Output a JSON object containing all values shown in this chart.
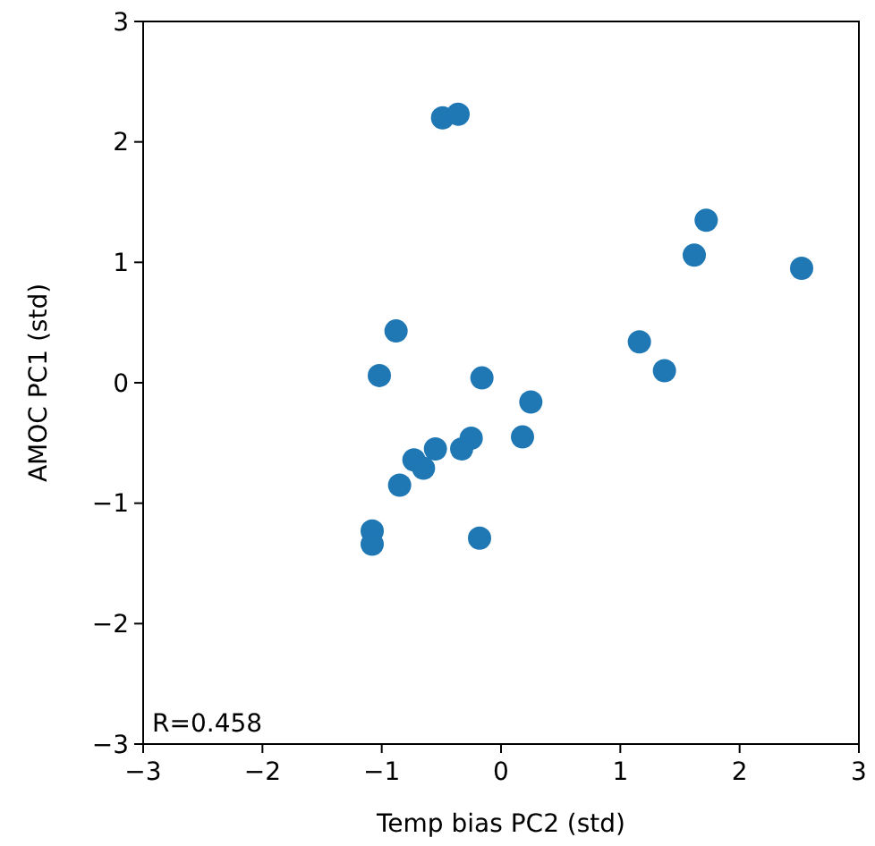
{
  "chart_data": {
    "type": "scatter",
    "xlabel": "Temp bias PC2 (std)",
    "ylabel": "AMOC PC1 (std)",
    "xlim": [
      -3,
      3
    ],
    "ylim": [
      -3,
      3
    ],
    "xticks": [
      {
        "value": -3,
        "label": "−3"
      },
      {
        "value": -2,
        "label": "−2"
      },
      {
        "value": -1,
        "label": "−1"
      },
      0,
      1,
      2,
      3
    ],
    "yticks": [
      {
        "value": -3,
        "label": "−3"
      },
      {
        "value": -2,
        "label": "−2"
      },
      {
        "value": -1,
        "label": "−1"
      },
      0,
      1,
      2,
      3
    ],
    "marker": "circle",
    "grid": false,
    "annotations": [
      "R=0.458"
    ],
    "series": [
      {
        "color": "#1f77b4",
        "x": [
          -0.49,
          -0.36,
          1.72,
          1.62,
          2.52,
          1.16,
          1.37,
          -0.88,
          -1.02,
          -0.16,
          0.25,
          0.18,
          -0.25,
          -0.33,
          -0.55,
          -0.73,
          -0.65,
          -0.85,
          -1.08,
          -1.08,
          -0.18
        ],
        "values": [
          2.2,
          2.23,
          1.35,
          1.06,
          0.95,
          0.34,
          0.1,
          0.43,
          0.06,
          0.04,
          -0.16,
          -0.45,
          -0.46,
          -0.55,
          -0.55,
          -0.64,
          -0.71,
          -0.85,
          -1.23,
          -1.34,
          -1.29
        ]
      }
    ]
  }
}
